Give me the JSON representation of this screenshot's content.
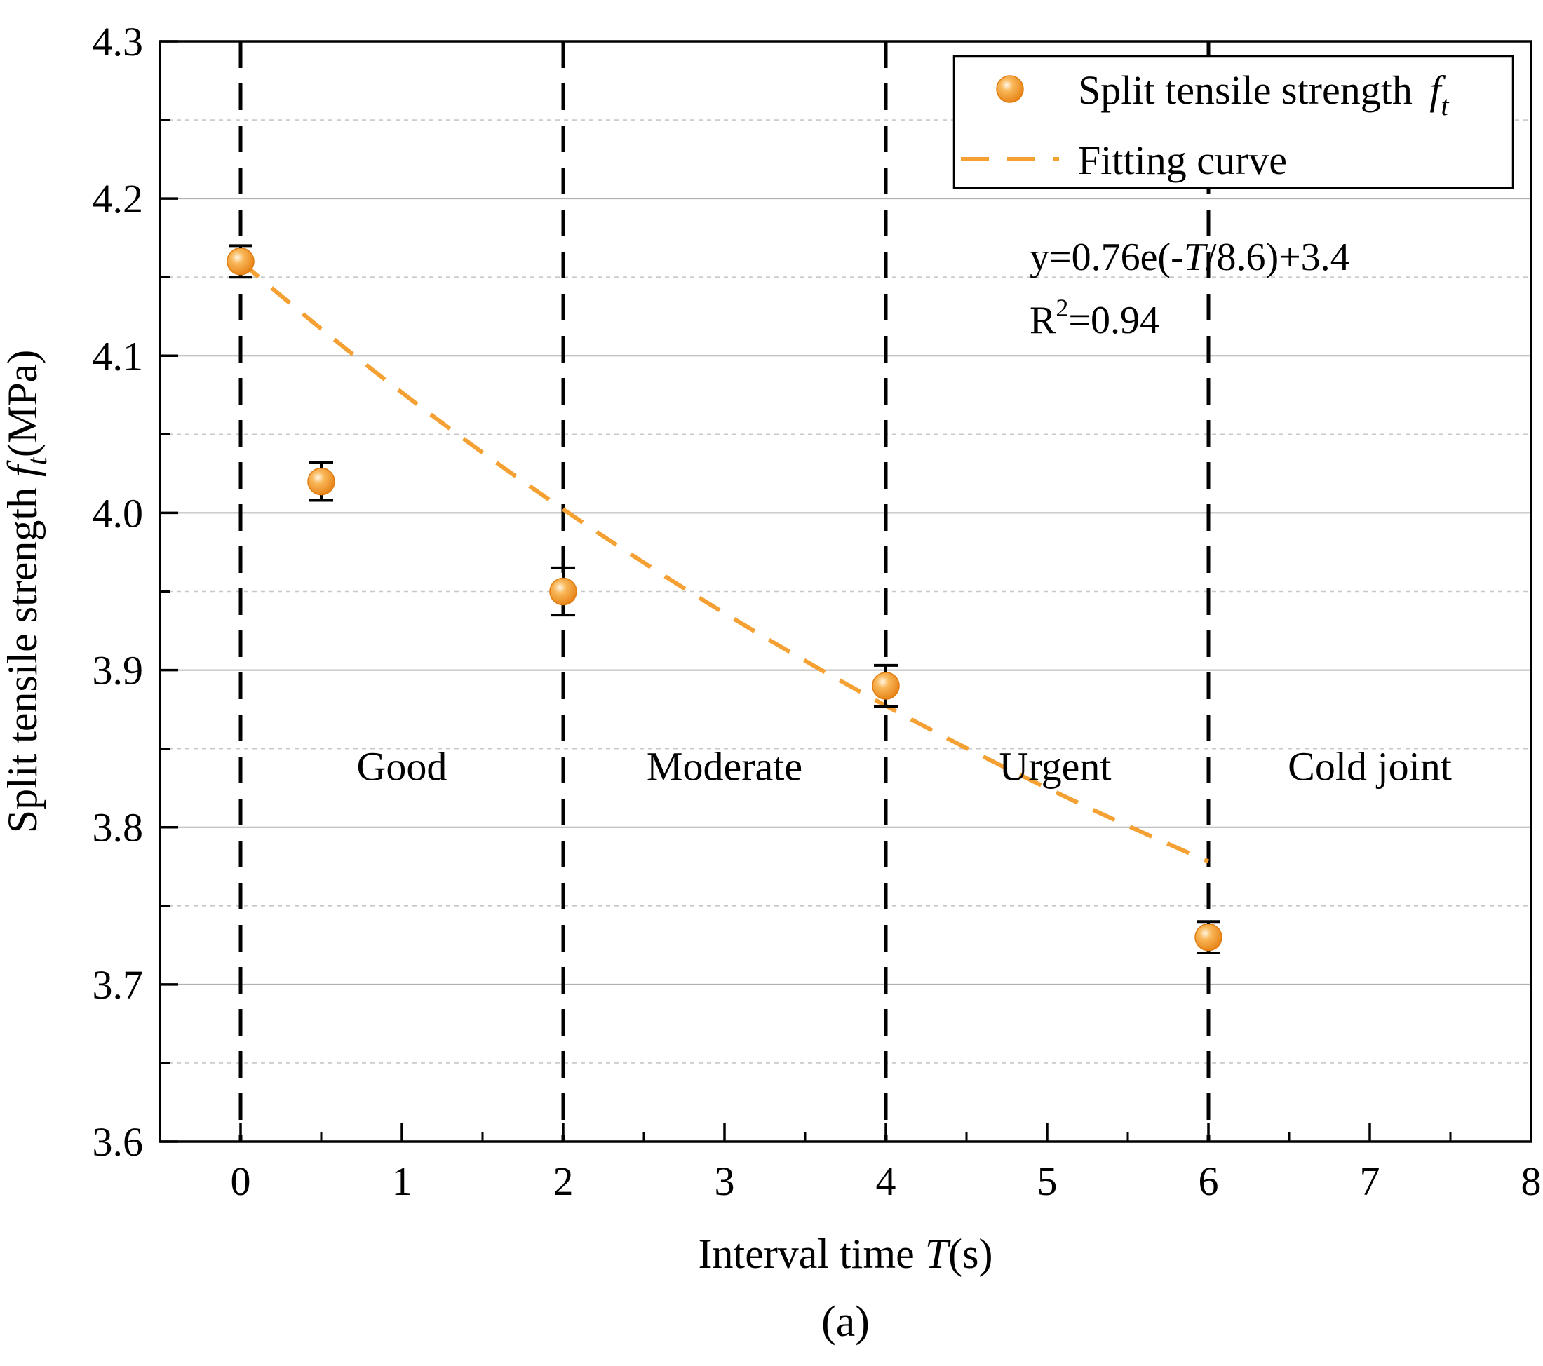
{
  "chart_data": {
    "type": "scatter",
    "panel_label": "(a)",
    "xlabel": "Interval time T(s)",
    "xlabel_parts": {
      "prefix": "Interval time ",
      "italic": "T",
      "suffix": "(s)"
    },
    "ylabel": "Split tensile strength ft(MPa)",
    "ylabel_parts": {
      "prefix": "Split tensile strength ",
      "italic": "f",
      "sub": "t",
      "suffix": "(MPa)"
    },
    "xlim": [
      -0.5,
      8
    ],
    "ylim": [
      3.6,
      4.3
    ],
    "xticks": [
      0,
      1,
      2,
      3,
      4,
      5,
      6,
      7,
      8
    ],
    "xtick_labels": [
      "0",
      "1",
      "2",
      "3",
      "4",
      "5",
      "6",
      "7",
      "8"
    ],
    "yticks": [
      3.6,
      3.7,
      3.8,
      3.9,
      4.0,
      4.1,
      4.2,
      4.3
    ],
    "ytick_labels": [
      "3.6",
      "3.7",
      "3.8",
      "3.9",
      "4.0",
      "4.1",
      "4.2",
      "4.3"
    ],
    "grid_major_y": [
      3.7,
      3.8,
      3.9,
      4.0,
      4.1,
      4.2
    ],
    "grid_minor_y": [
      3.65,
      3.75,
      3.85,
      3.95,
      4.05,
      4.15,
      4.25
    ],
    "series": [
      {
        "name": "Split tensile strength ft",
        "kind": "points",
        "color": "#f5a033",
        "x": [
          0,
          0.5,
          2,
          4,
          6
        ],
        "y": [
          4.16,
          4.02,
          3.95,
          3.89,
          3.73
        ],
        "err_upper": [
          4.17,
          4.032,
          3.965,
          3.903,
          3.74
        ],
        "err_lower": [
          4.15,
          4.008,
          3.935,
          3.877,
          3.72
        ]
      },
      {
        "name": "Fitting curve",
        "kind": "fit",
        "color": "#f5a033",
        "fit": {
          "a": 0.76,
          "b": 8.6,
          "c": 3.4,
          "x_start": 0,
          "x_end": 6
        }
      }
    ],
    "legend": {
      "position": "top-right",
      "entries": [
        {
          "label": "Split tensile strength ",
          "italic": "f",
          "sub": "t"
        },
        {
          "label": "Fitting curve"
        }
      ]
    },
    "equation": {
      "line1": {
        "prefix": "y=0.76e(-",
        "italic": "T",
        "suffix": "/8.6)+3.4"
      },
      "line2": {
        "prefix": "R",
        "sup": "2",
        "suffix": "=0.94"
      }
    },
    "boundaries_x": [
      0,
      2,
      4,
      6
    ],
    "regions": [
      {
        "label": "Good",
        "x": 1,
        "y": 3.83
      },
      {
        "label": "Moderate",
        "x": 3,
        "y": 3.83
      },
      {
        "label": "Urgent",
        "x": 5.05,
        "y": 3.83
      },
      {
        "label": "Cold joint",
        "x": 7,
        "y": 3.83
      }
    ],
    "colors": {
      "accent": "#f5a033",
      "axis": "#000000",
      "grid": "#b0b0b0"
    }
  }
}
